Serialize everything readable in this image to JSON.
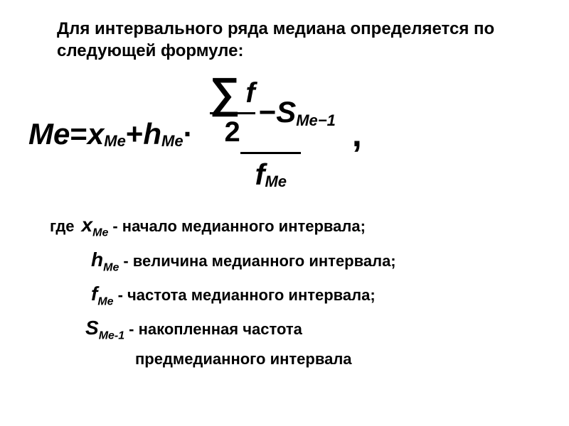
{
  "heading": "Для интервального ряда медиана определяется по следующей формуле:",
  "formula": {
    "lhs": "Me",
    "eq": " = ",
    "x": "x",
    "x_sub": "Me",
    "plus": " + ",
    "h": "h",
    "h_sub": "Me",
    "dot": " · ",
    "sigma": "∑",
    "f_top": "f",
    "two": "2",
    "minus": " − ",
    "S": "S",
    "S_sub": "Me−1",
    "f_bottom": "f",
    "f_bottom_sub": "Me",
    "comma": ","
  },
  "defs": {
    "where": "где",
    "x_var": "x",
    "x_sub": "Me",
    "x_text": " - начало медианного интервала;",
    "h_var": "h",
    "h_sub": "Me",
    "h_text": " -  величина медианного интервала;",
    "f_var": "f",
    "f_sub": "Me",
    "f_text": "  -  частота медианного интервала;",
    "s_var": "S",
    "s_sub": "Me-1",
    "s_text": "- накопленная частота",
    "s_text2": "предмедианного интервала"
  },
  "style": {
    "background": "#ffffff",
    "text_color": "#000000",
    "heading_fontsize": 24,
    "formula_fontsize": 42,
    "def_fontsize": 22
  }
}
